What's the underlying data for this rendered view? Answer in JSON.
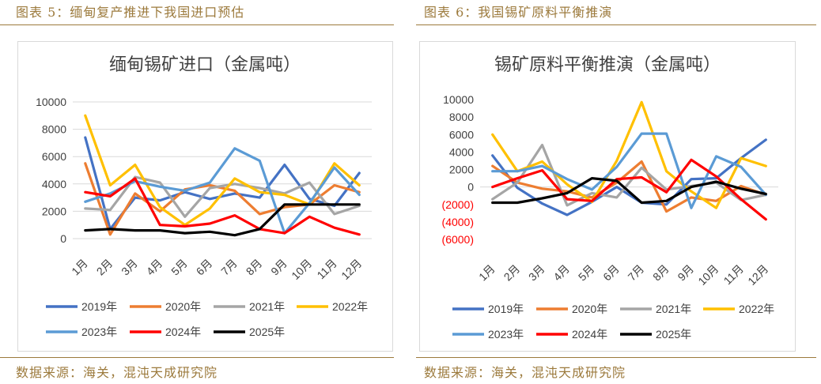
{
  "left": {
    "figure_title": "图表 5：缅甸复产推进下我国进口预估",
    "source": "数据来源：海关，混沌天成研究院"
  },
  "right": {
    "figure_title": "图表 6：我国锡矿原料平衡推演",
    "source": "数据来源：海关，混沌天成研究院"
  },
  "chart_data": [
    {
      "type": "line",
      "title": "缅甸锡矿进口（金属吨）",
      "categories": [
        "1月",
        "2月",
        "3月",
        "4月",
        "5月",
        "6月",
        "7月",
        "8月",
        "9月",
        "10月",
        "11月",
        "12月"
      ],
      "ylim": [
        0,
        10000
      ],
      "yticks": [
        0,
        2000,
        4000,
        6000,
        8000,
        10000
      ],
      "ytick_labels": [
        "0",
        "2000",
        "4000",
        "6000",
        "8000",
        "10000"
      ],
      "grid": true,
      "legend": "bottom",
      "series": [
        {
          "name": "2019年",
          "color": "#4472c4",
          "values": [
            7400,
            700,
            3000,
            2800,
            3400,
            2900,
            3300,
            3000,
            5400,
            2900,
            2400,
            4800
          ]
        },
        {
          "name": "2020年",
          "color": "#ed7d31",
          "values": [
            5500,
            300,
            3300,
            2000,
            3600,
            3900,
            3500,
            1800,
            2300,
            2500,
            3900,
            3400
          ]
        },
        {
          "name": "2021年",
          "color": "#a5a5a5",
          "values": [
            2200,
            2100,
            4500,
            4100,
            1600,
            3700,
            4000,
            3700,
            3300,
            4100,
            1800,
            2400
          ]
        },
        {
          "name": "2022年",
          "color": "#ffc000",
          "values": [
            9000,
            3900,
            5400,
            2300,
            1000,
            2200,
            4400,
            3400,
            3200,
            2500,
            5500,
            3900
          ]
        },
        {
          "name": "2023年",
          "color": "#5b9bd5",
          "values": [
            2700,
            3300,
            4200,
            3800,
            3500,
            4100,
            6600,
            5700,
            400,
            2600,
            5200,
            3200
          ]
        },
        {
          "name": "2024年",
          "color": "#ff0000",
          "values": [
            3400,
            3100,
            4400,
            1000,
            900,
            1100,
            1700,
            700,
            400,
            1600,
            800,
            300
          ]
        },
        {
          "name": "2025年",
          "color": "#000000",
          "values": [
            600,
            700,
            600,
            600,
            400,
            500,
            250,
            700,
            2500,
            2500,
            2500,
            2500
          ]
        }
      ]
    },
    {
      "type": "line",
      "title": "锡矿原料平衡推演（金属吨）",
      "categories": [
        "1月",
        "2月",
        "3月",
        "4月",
        "5月",
        "6月",
        "7月",
        "8月",
        "9月",
        "10月",
        "11月",
        "12月"
      ],
      "ylim": [
        -6000,
        10000
      ],
      "yticks": [
        -6000,
        -4000,
        -2000,
        0,
        2000,
        4000,
        6000,
        8000,
        10000
      ],
      "ytick_labels": [
        "(6000)",
        "(4000)",
        "(2000)",
        "0",
        "2000",
        "4000",
        "6000",
        "8000",
        "10000"
      ],
      "negative_label_color": "#ff0000",
      "grid": false,
      "legend": "bottom",
      "series": [
        {
          "name": "2019年",
          "color": "#4472c4",
          "values": [
            3600,
            -100,
            -1900,
            -3200,
            -1700,
            0,
            -1800,
            -2000,
            900,
            1000,
            3300,
            5400
          ]
        },
        {
          "name": "2020年",
          "color": "#ed7d31",
          "values": [
            2400,
            500,
            -200,
            -500,
            -1200,
            500,
            2900,
            -2800,
            -1200,
            -1600,
            100,
            -900
          ]
        },
        {
          "name": "2021年",
          "color": "#a5a5a5",
          "values": [
            -1400,
            500,
            4800,
            -2100,
            -700,
            -1200,
            2200,
            -300,
            100,
            500,
            -1500,
            -900
          ]
        },
        {
          "name": "2022年",
          "color": "#ffc000",
          "values": [
            6000,
            1800,
            2900,
            300,
            -1700,
            3000,
            9700,
            1800,
            -500,
            -2400,
            3300,
            2400
          ]
        },
        {
          "name": "2023年",
          "color": "#5b9bd5",
          "values": [
            1800,
            1800,
            2400,
            900,
            -300,
            2300,
            6100,
            6100,
            -2400,
            3500,
            2300,
            -900
          ]
        },
        {
          "name": "2024年",
          "color": "#ff0000",
          "values": [
            0,
            1000,
            1900,
            -1400,
            -1600,
            900,
            1100,
            -600,
            3100,
            1200,
            -1400,
            -3700
          ]
        },
        {
          "name": "2025年",
          "color": "#000000",
          "values": [
            -1800,
            -1800,
            -1300,
            -700,
            1000,
            700,
            -1800,
            -1600,
            0,
            600,
            -200,
            -800
          ]
        }
      ]
    }
  ]
}
